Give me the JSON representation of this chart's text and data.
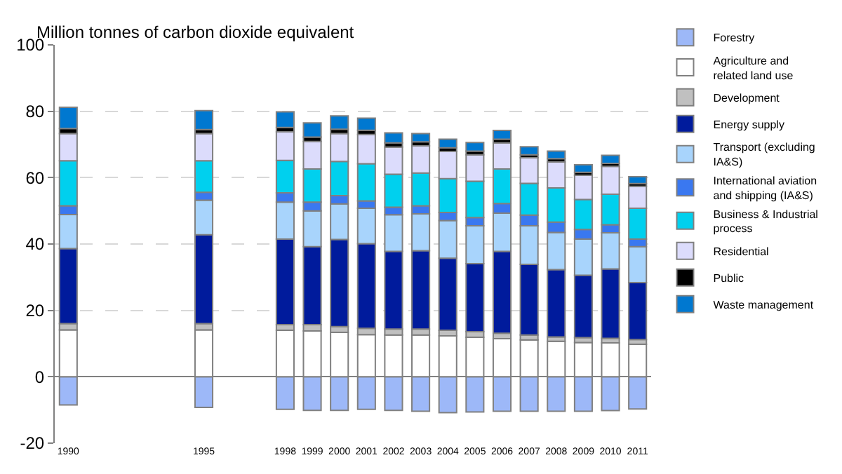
{
  "chart_data": {
    "type": "bar",
    "stacked": true,
    "ylabel": "Million tonnes of carbon dioxide equivalent",
    "categories": [
      "1990",
      null,
      null,
      null,
      null,
      "1995",
      null,
      null,
      "1998",
      "1999",
      "2000",
      "2001",
      "2002",
      "2003",
      "2004",
      "2005",
      "2006",
      "2007",
      "2008",
      "2009",
      "2010",
      "2011"
    ],
    "ylim": [
      -20,
      100
    ],
    "yticks": [
      -20,
      0,
      20,
      40,
      60,
      80,
      100
    ],
    "grid": "y",
    "legend": "right",
    "series": [
      {
        "name": "Forestry",
        "color": "#9db8f8",
        "values": [
          -8.5,
          null,
          null,
          null,
          null,
          -9.2,
          null,
          null,
          -9.8,
          -10.1,
          -10.1,
          -9.8,
          -10.1,
          -10.4,
          -10.8,
          -10.6,
          -10.4,
          -10.4,
          -10.4,
          -10.4,
          -10.2,
          -9.7
        ]
      },
      {
        "name": "Agriculture and related land use",
        "color": "#ffffff",
        "values": [
          14.1,
          null,
          null,
          null,
          null,
          14.1,
          null,
          null,
          14.0,
          13.8,
          13.4,
          12.7,
          12.6,
          12.6,
          12.3,
          11.9,
          11.5,
          11.1,
          10.7,
          10.3,
          10.2,
          9.8
        ]
      },
      {
        "name": "Development",
        "color": "#c0c0c0",
        "values": [
          1.9,
          null,
          null,
          null,
          null,
          1.9,
          null,
          null,
          1.7,
          1.9,
          1.7,
          1.9,
          1.8,
          1.8,
          1.7,
          1.7,
          1.6,
          1.5,
          1.3,
          1.5,
          1.4,
          1.4
        ]
      },
      {
        "name": "Energy supply",
        "color": "#001b9c",
        "values": [
          22.6,
          null,
          null,
          null,
          null,
          26.8,
          null,
          null,
          25.8,
          23.5,
          26.3,
          25.5,
          23.4,
          23.6,
          21.7,
          20.5,
          24.7,
          21.3,
          20.3,
          18.8,
          20.9,
          17.2
        ]
      },
      {
        "name": "Transport (excluding IA&S)",
        "color": "#a8d4fc",
        "values": [
          10.3,
          null,
          null,
          null,
          null,
          10.4,
          null,
          null,
          11.1,
          10.8,
          10.7,
          10.7,
          11.0,
          11.1,
          11.4,
          11.4,
          11.5,
          11.6,
          11.2,
          10.9,
          10.9,
          10.8
        ]
      },
      {
        "name": "International aviation and shipping (IA&S)",
        "color": "#3a78f0",
        "values": [
          2.6,
          null,
          null,
          null,
          null,
          2.4,
          null,
          null,
          2.8,
          2.6,
          2.5,
          2.2,
          2.3,
          2.4,
          2.4,
          2.5,
          2.9,
          3.2,
          3.1,
          2.9,
          2.4,
          2.3
        ]
      },
      {
        "name": "Business & Industrial process",
        "color": "#00d0ee",
        "values": [
          13.6,
          null,
          null,
          null,
          null,
          9.5,
          null,
          null,
          9.8,
          10.0,
          10.3,
          11.2,
          9.9,
          9.9,
          10.2,
          10.9,
          10.4,
          9.6,
          10.3,
          9.0,
          9.2,
          9.3
        ]
      },
      {
        "name": "Residential",
        "color": "#dcdcfc",
        "values": [
          8.2,
          null,
          null,
          null,
          null,
          8.2,
          null,
          null,
          8.6,
          8.3,
          8.4,
          8.8,
          8.2,
          8.2,
          8.2,
          8.0,
          7.9,
          7.7,
          7.8,
          7.3,
          8.4,
          6.6
        ]
      },
      {
        "name": "Public",
        "color": "#000000",
        "values": [
          1.5,
          null,
          null,
          null,
          null,
          1.2,
          null,
          null,
          1.3,
          1.3,
          1.3,
          1.3,
          1.3,
          1.2,
          1.1,
          1.1,
          1.1,
          0.9,
          1.0,
          0.9,
          0.9,
          0.8
        ]
      },
      {
        "name": "Waste management",
        "color": "#0078d0",
        "values": [
          6.4,
          null,
          null,
          null,
          null,
          5.7,
          null,
          null,
          4.7,
          4.3,
          4.0,
          3.6,
          3.0,
          2.5,
          2.6,
          2.6,
          2.6,
          2.4,
          2.3,
          2.3,
          2.4,
          2.1
        ]
      }
    ]
  }
}
